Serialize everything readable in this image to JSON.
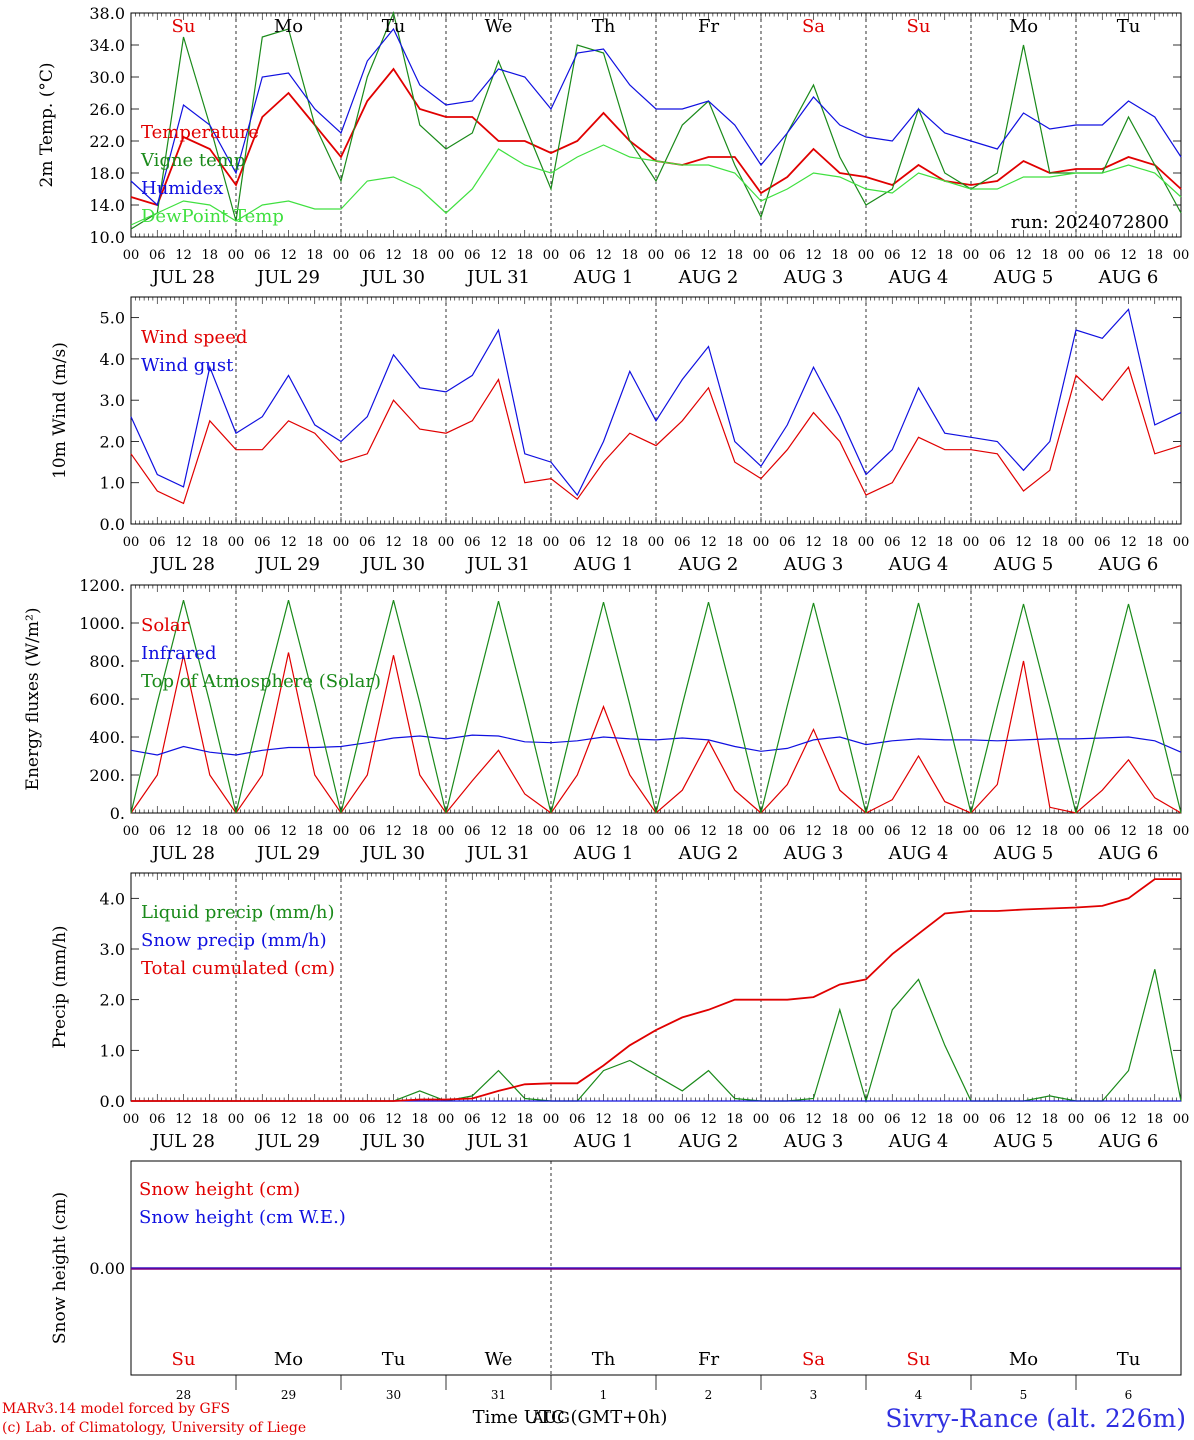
{
  "days_of_week": [
    "Su",
    "Mo",
    "Tu",
    "We",
    "Th",
    "Fr",
    "Sa",
    "Su",
    "Mo",
    "Tu"
  ],
  "weekend_color": "#e00000",
  "weekday_color": "#000000",
  "date_labels": [
    "JUL 28",
    "JUL 29",
    "JUL 30",
    "JUL 31",
    "AUG  1",
    "AUG  2",
    "AUG  3",
    "AUG  4",
    "AUG  5",
    "AUG  6"
  ],
  "hour_labels": [
    "00",
    "06",
    "12",
    "18"
  ],
  "last_hour_label": "00",
  "bottom_day_numbers": [
    "28",
    "29",
    "30",
    "31",
    "1",
    "2",
    "3",
    "4",
    "5",
    "6"
  ],
  "month_label": "AUG",
  "time_axis_label": "Time UTC (GMT+0h)",
  "run_label": "run: 2024072800",
  "credit_line1": "MARv3.14 model forced by GFS",
  "credit_line2": "(c) Lab. of Climatology, University of Liege",
  "station_label": "Sivry-Rance (alt. 226m)",
  "chart_data": [
    {
      "type": "line",
      "ylabel": "2m Temp. (°C)",
      "ylim": [
        10,
        38
      ],
      "yticks": [
        "10.0",
        "14.0",
        "18.0",
        "22.0",
        "26.0",
        "30.0",
        "34.0",
        "38.0"
      ],
      "x_hours": [
        0,
        6,
        12,
        18,
        24,
        30,
        36,
        42,
        48,
        54,
        60,
        66,
        72,
        78,
        84,
        90,
        96,
        102,
        108,
        114,
        120,
        126,
        132,
        138,
        144,
        150,
        156,
        162,
        168,
        174,
        180,
        186,
        192,
        198,
        204,
        210,
        216,
        222,
        228,
        234,
        240
      ],
      "series": [
        {
          "name": "Temperature",
          "color": "#e00000",
          "values": [
            15,
            14,
            22.5,
            21,
            16.5,
            25,
            28,
            24,
            20,
            27,
            31,
            26,
            25,
            25,
            22,
            22,
            20.5,
            22,
            25.5,
            22,
            19.5,
            19,
            20,
            20,
            15.5,
            17.5,
            21,
            18,
            17.5,
            16.5,
            19,
            17,
            16.5,
            17,
            19.5,
            18,
            18.5,
            18.5,
            20,
            19,
            16
          ]
        },
        {
          "name": "Vigne temp",
          "color": "#1a8a1a",
          "values": [
            11,
            13,
            35,
            24,
            12,
            35,
            36,
            24,
            17,
            30,
            38,
            24,
            21,
            23,
            32,
            24,
            16,
            34,
            33,
            22,
            17,
            24,
            27,
            19,
            12.5,
            23,
            29,
            20,
            14,
            16,
            26,
            18,
            16,
            18,
            34,
            18,
            18,
            18,
            25,
            19,
            13
          ]
        },
        {
          "name": "Humidex",
          "color": "#1010e0",
          "values": [
            17,
            14,
            26.5,
            24,
            18,
            30,
            30.5,
            26,
            23,
            32,
            36,
            29,
            26.5,
            27,
            31,
            30,
            26,
            33,
            33.5,
            29,
            26,
            26,
            27,
            24,
            19,
            23,
            27.5,
            24,
            22.5,
            22,
            26,
            23,
            22,
            21,
            25.5,
            23.5,
            24,
            24,
            27,
            25,
            20
          ]
        },
        {
          "name": "DewPoint Temp",
          "color": "#40e040",
          "values": [
            11.5,
            13,
            14.5,
            14,
            12,
            14,
            14.5,
            13.5,
            13.5,
            17,
            17.5,
            16,
            13,
            16,
            21,
            19,
            18,
            20,
            21.5,
            20,
            19.5,
            19,
            19,
            18,
            14.5,
            16,
            18,
            17.5,
            16,
            15.5,
            18,
            17,
            16,
            16,
            17.5,
            17.5,
            18,
            18,
            19,
            18,
            15
          ]
        }
      ]
    },
    {
      "type": "line",
      "ylabel": "10m Wind (m/s)",
      "ylim": [
        0,
        5.5
      ],
      "yticks": [
        "0.0",
        "1.0",
        "2.0",
        "3.0",
        "4.0",
        "5.0"
      ],
      "x_hours": [
        0,
        6,
        12,
        18,
        24,
        30,
        36,
        42,
        48,
        54,
        60,
        66,
        72,
        78,
        84,
        90,
        96,
        102,
        108,
        114,
        120,
        126,
        132,
        138,
        144,
        150,
        156,
        162,
        168,
        174,
        180,
        186,
        192,
        198,
        204,
        210,
        216,
        222,
        228,
        234,
        240
      ],
      "series": [
        {
          "name": "Wind speed",
          "color": "#e00000",
          "values": [
            1.7,
            0.8,
            0.5,
            2.5,
            1.8,
            1.8,
            2.5,
            2.2,
            1.5,
            1.7,
            3,
            2.3,
            2.2,
            2.5,
            3.5,
            1,
            1.1,
            0.6,
            1.5,
            2.2,
            1.9,
            2.5,
            3.3,
            1.5,
            1.1,
            1.8,
            2.7,
            2,
            0.7,
            1,
            2.1,
            1.8,
            1.8,
            1.7,
            0.8,
            1.3,
            3.6,
            3,
            3.8,
            1.7,
            1.9
          ]
        },
        {
          "name": "Wind gust",
          "color": "#1010e0",
          "values": [
            2.6,
            1.2,
            0.9,
            3.8,
            2.2,
            2.6,
            3.6,
            2.4,
            2,
            2.6,
            4.1,
            3.3,
            3.2,
            3.6,
            4.7,
            1.7,
            1.5,
            0.7,
            2,
            3.7,
            2.5,
            3.5,
            4.3,
            2,
            1.4,
            2.4,
            3.8,
            2.6,
            1.2,
            1.8,
            3.3,
            2.2,
            2.1,
            2,
            1.3,
            2,
            4.7,
            4.5,
            5.2,
            2.4,
            2.7
          ]
        }
      ]
    },
    {
      "type": "line",
      "ylabel": "Energy fluxes (W/m²)",
      "ylim": [
        0,
        1200
      ],
      "yticks": [
        "0.",
        "200.",
        "400.",
        "600.",
        "800.",
        "1000.",
        "1200."
      ],
      "x_hours": [
        0,
        6,
        12,
        18,
        24,
        30,
        36,
        42,
        48,
        54,
        60,
        66,
        72,
        78,
        84,
        90,
        96,
        102,
        108,
        114,
        120,
        126,
        132,
        138,
        144,
        150,
        156,
        162,
        168,
        174,
        180,
        186,
        192,
        198,
        204,
        210,
        216,
        222,
        228,
        234,
        240
      ],
      "series": [
        {
          "name": "Solar",
          "color": "#e00000",
          "values": [
            0,
            200,
            830,
            200,
            0,
            200,
            845,
            200,
            0,
            200,
            830,
            200,
            0,
            170,
            330,
            100,
            0,
            200,
            560,
            200,
            0,
            120,
            380,
            120,
            0,
            150,
            440,
            120,
            0,
            70,
            300,
            60,
            0,
            150,
            800,
            30,
            0,
            120,
            280,
            80,
            0
          ]
        },
        {
          "name": "Infrared",
          "color": "#1010e0",
          "values": [
            330,
            305,
            350,
            320,
            305,
            330,
            345,
            345,
            350,
            370,
            395,
            405,
            390,
            410,
            405,
            375,
            370,
            380,
            400,
            390,
            385,
            395,
            385,
            350,
            325,
            340,
            385,
            400,
            360,
            380,
            390,
            385,
            385,
            380,
            385,
            390,
            390,
            395,
            400,
            380,
            320
          ]
        },
        {
          "name": "Top of Atmosphere (Solar)",
          "color": "#1a8a1a",
          "values": [
            0,
            580,
            1120,
            580,
            0,
            580,
            1120,
            580,
            0,
            580,
            1120,
            580,
            0,
            570,
            1115,
            570,
            0,
            570,
            1110,
            570,
            0,
            570,
            1110,
            570,
            0,
            565,
            1105,
            565,
            0,
            565,
            1105,
            565,
            0,
            560,
            1100,
            560,
            0,
            560,
            1100,
            560,
            0
          ]
        }
      ]
    },
    {
      "type": "line",
      "ylabel": "Precip (mm/h)",
      "ylim": [
        0,
        4.5
      ],
      "yticks": [
        "0.0",
        "1.0",
        "2.0",
        "3.0",
        "4.0"
      ],
      "x_hours": [
        0,
        6,
        12,
        18,
        24,
        30,
        36,
        42,
        48,
        54,
        60,
        66,
        72,
        78,
        84,
        90,
        96,
        102,
        108,
        114,
        120,
        126,
        132,
        138,
        144,
        150,
        156,
        162,
        168,
        174,
        180,
        186,
        192,
        198,
        204,
        210,
        216,
        222,
        228,
        234,
        240
      ],
      "series": [
        {
          "name": "Liquid precip (mm/h)",
          "color": "#1a8a1a",
          "values": [
            0,
            0,
            0,
            0,
            0,
            0,
            0,
            0,
            0,
            0,
            0,
            0.2,
            0,
            0.1,
            0.6,
            0.05,
            0,
            0,
            0.6,
            0.8,
            0.5,
            0.2,
            0.6,
            0.05,
            0,
            0,
            0.05,
            1.8,
            0,
            1.8,
            2.4,
            1.1,
            0,
            0,
            0,
            0.1,
            0,
            0,
            0.6,
            2.6,
            0
          ]
        },
        {
          "name": "Snow precip (mm/h)",
          "color": "#1010e0",
          "values": [
            0,
            0,
            0,
            0,
            0,
            0,
            0,
            0,
            0,
            0,
            0,
            0,
            0,
            0,
            0,
            0,
            0,
            0,
            0,
            0,
            0,
            0,
            0,
            0,
            0,
            0,
            0,
            0,
            0,
            0,
            0,
            0,
            0,
            0,
            0,
            0,
            0,
            0,
            0,
            0,
            0
          ]
        },
        {
          "name": "Total cumulated (cm)",
          "color": "#e00000",
          "values": [
            0,
            0,
            0,
            0,
            0,
            0,
            0,
            0,
            0,
            0,
            0,
            0.03,
            0.03,
            0.05,
            0.2,
            0.33,
            0.35,
            0.35,
            0.7,
            1.1,
            1.4,
            1.65,
            1.8,
            2,
            2,
            2,
            2.05,
            2.3,
            2.4,
            2.9,
            3.3,
            3.7,
            3.75,
            3.75,
            3.78,
            3.8,
            3.82,
            3.85,
            4,
            4.38,
            4.38
          ]
        }
      ]
    },
    {
      "type": "line",
      "ylabel": "Snow height (cm)",
      "ylim": [
        -1,
        1
      ],
      "yticks": [
        "0.00"
      ],
      "x_hours": [
        0,
        240
      ],
      "series": [
        {
          "name": "Snow height (cm)",
          "color": "#e00000",
          "values": [
            0,
            0
          ]
        },
        {
          "name": "Snow height (cm W.E.)",
          "color": "#1010e0",
          "values": [
            0,
            0
          ]
        }
      ]
    }
  ]
}
